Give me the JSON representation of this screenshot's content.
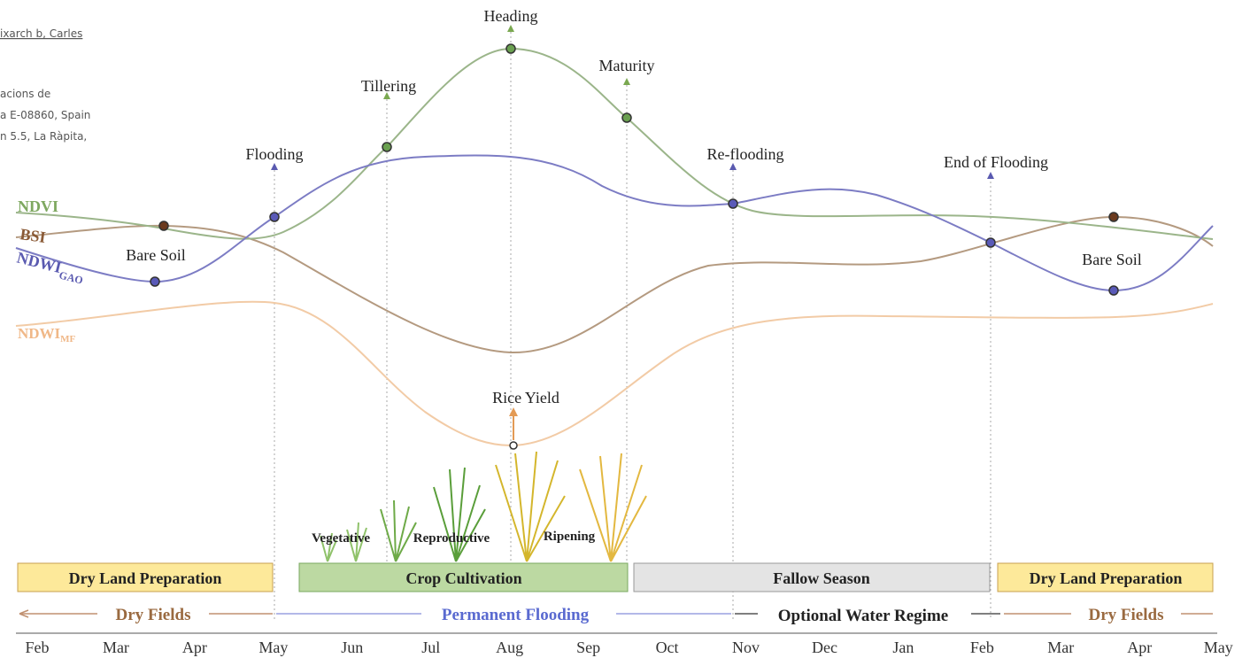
{
  "header_fragment": {
    "lines": [
      "ixarch b, Carles",
      "acions de",
      "a E-08860, Spain",
      "n 5.5, La Ràpita,"
    ]
  },
  "stages": {
    "heading": "Heading",
    "maturity": "Maturity",
    "tillering": "Tillering",
    "flooding": "Flooding",
    "reflooding": "Re-flooding",
    "end_of_flooding": "End of Flooding"
  },
  "indices": {
    "ndvi": "NDVI",
    "bsi": "BSI",
    "ndwi_gao": {
      "label": "NDWI",
      "subscript": "GAO"
    },
    "ndwi_mf": {
      "label": "NDWI",
      "subscript": "MF"
    }
  },
  "annotations": {
    "bare_soil_left": "Bare Soil",
    "bare_soil_right": "Bare Soil",
    "rice_yield": "Rice Yield"
  },
  "growth_phases": [
    "Vegetative",
    "Reproductive",
    "Ripening"
  ],
  "seasons": [
    "Dry Land Preparation",
    "Crop Cultivation",
    "Fallow Season",
    "Dry Land Preparation"
  ],
  "water_regimes": [
    "Dry Fields",
    "Permanent Flooding",
    "Optional Water Regime",
    "Dry Fields"
  ],
  "months": [
    "Feb",
    "Mar",
    "Apr",
    "May",
    "Jun",
    "Jul",
    "Aug",
    "Sep",
    "Oct",
    "Nov",
    "Dec",
    "Jan",
    "Feb",
    "Mar",
    "Apr",
    "May"
  ]
}
